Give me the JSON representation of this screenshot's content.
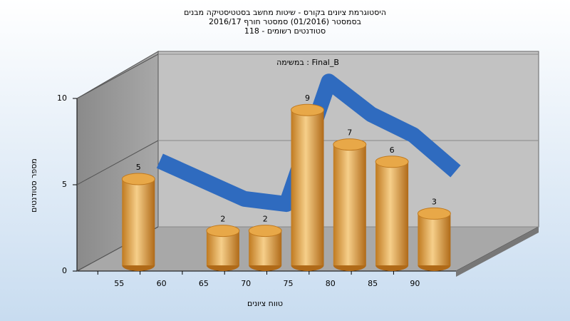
{
  "chart_data": {
    "type": "bar",
    "title": [
      "היסטוגרמת ציונים בקורס - שיטות מחשב בסטטיסטיקה מבנים",
      "בסמסטר  (01/2016)  סמסטר חורף 2016/17",
      "סטודנטים רשומים - 118"
    ],
    "annotation": "במשימה : Final_B",
    "x_label": "טווח ציונים",
    "y_label": "מספר סטודנטים",
    "categories": [
      "55",
      "60",
      "65",
      "70",
      "75",
      "80",
      "85",
      "90"
    ],
    "series": [
      {
        "type": "bar",
        "color": "#e0a040",
        "values": [
          5,
          null,
          2,
          2,
          9,
          7,
          6,
          3
        ]
      },
      {
        "type": "line",
        "color": "#2f6bbf",
        "values": [
          5.1,
          4.0,
          2.9,
          2.6,
          9.7,
          7.8,
          6.6,
          4.5
        ]
      }
    ],
    "ylim": [
      0,
      10
    ],
    "yticks": [
      0,
      5,
      10
    ],
    "grid": true
  }
}
